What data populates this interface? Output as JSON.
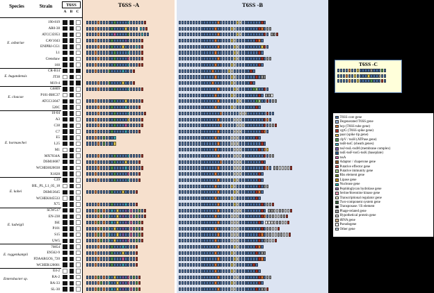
{
  "headers": {
    "species": "Species",
    "strain": "Strain",
    "t6ss": "T6SS",
    "col_a": "A",
    "col_b": "B",
    "col_c": "C"
  },
  "panels": {
    "a_title": "T6SS -A",
    "b_title": "T6SS -B"
  },
  "c_panel": {
    "title": "T6SS -C",
    "rows": [
      "BBBBOBBYBBBBNBBBGB",
      "BBBOBBYBBBBYBBBNBB",
      "BBBBOBBYBBBBGBBBRB"
    ]
  },
  "colors": {
    "panel_a_bg": "#f6e0cd",
    "panel_b_bg": "#dce4f2",
    "c_box_bg": "#ffffda",
    "c_box_border": "#4f74a8",
    "presence_fill": "#151515",
    "core_gene_blue": "#4f74a8"
  },
  "palette": {
    "B": "#4f74a8",
    "b": "#8fa9cf",
    "O": "#e07b39",
    "R": "#a93226",
    "r": "#d9534f",
    "G": "#4e9a51",
    "g": "#a3c585",
    "Y": "#e3c94e",
    "y": "#f2ecc8",
    "P": "#7b5aa6",
    "C": "#3fb0bd",
    "M": "#c95da0",
    "K": "#1a1a1a",
    "N": "#9a9a9a",
    "n": "#d2d2d2",
    "W": "#ffffff",
    "D": "#8a5a2b",
    "T": "#2e5984"
  },
  "table": {
    "groups": [
      {
        "name": "E. asburiae",
        "strains": [
          {
            "n": "190-819",
            "a": "BBBBOBBBBBGBBBBCBBBBBR",
            "b": "BBBBBBBBBBBBBBOBBBBBBYyBBBBBBBRB",
            "c": false
          },
          {
            "n": "AR0-38",
            "a": "BBBOBBBBBGBBBBYBBBB CBR",
            "b": "BBBBBBBBBBBBBOBBBBBYyBBBBBBBBROBNN",
            "c": false
          },
          {
            "n": "ATCC35953",
            "a": "BBBBOBBBBBMBBBBGBBBBCBB",
            "b": "BBBBBBBBBBBBBBOBBBBBBYyBBBBBBBBRB NNR",
            "c": false
          },
          {
            "n": "CAV1043",
            "a": "BBBOBBBBBGBBBBPBBBBBR",
            "b": "BBBBBBBBBBBBBOBBBBBYyBBBBBBBROB",
            "c": false
          },
          {
            "n": "ENIPBJ-CG1",
            "a": "BBBBOBBBBGBBBYBBBBCBR",
            "b": "BBBBBBBBBBBBBBOBBBBBYyBBBBBBBBYRB",
            "c": false
          },
          {
            "n": "L1",
            "a": "BBBOBBBBBBGBBBBCBBBBR",
            "b": "BBBBBBBBBBBBBOBBBBBBYyBBBBBBBRB",
            "c": false
          },
          {
            "n": "Crenshaw",
            "a": "BBBBOBBBBBGBBBBMBBBBR",
            "b": "BBBBBBBBBBBBBBOBBBBBYyBBBBBBBBRBNN",
            "c": false
          },
          {
            "n": "160",
            "a": "BBBOBBBBBBGBBBBCBBBRR",
            "b": "BBBBBBBBBBBBBOBBBBBYyBBBBBBBBRB",
            "c": false
          }
        ]
      },
      {
        "name": "E. bugandensis",
        "strains": [
          {
            "n": "CR-B14",
            "a": "BBBOBBBBGBBBBCBBBR",
            "b": "BBBBBBBBBBBBOBBBBBYyBBBBBBRB",
            "c": true
          },
          {
            "n": "JT38",
            "a": "",
            "b": "BBBBBBBBBBBBBOBBBBBYyBBBBBBBRBNN",
            "c": false
          },
          {
            "n": "M19-4",
            "a": "BBBBOBBBGBBBBYBBBR",
            "b": "BBBBBBBBBBBBOBBBBBBYyBBBBBRB",
            "c": true
          }
        ]
      },
      {
        "name": "E. cloacae",
        "strains": [
          {
            "n": "G6809",
            "a": "BBBBOBBBBBGBBBBCBBBBR",
            "b": "BBBBBBBBBBBBBBOBBBBBYyBBBBBGgBBRB",
            "c": false
          },
          {
            "n": "P101-BHC37",
            "a": "",
            "b": "BBBBBBBBBBBBBOBBBBBYyBBBBBBBBRB NNW",
            "c": false
          },
          {
            "n": "ATCC13047",
            "a": "BBBOBBBBBBGBBBYBBBBBR",
            "b": "BBBBBBBBBBBBBBOBBBBBBYyBBBBBGgBBRBNN",
            "c": false
          },
          {
            "n": "520C",
            "a": "BBBBOBBBBGBBBBCBBBBR",
            "b": "BBBBBBBBBBBBBOBBBBBYyBBBBBBBRB",
            "c": false
          }
        ]
      },
      {
        "name": "E. hormaechei",
        "strains": [
          {
            "n": "10-04",
            "a": "BBBBOBBBBBGBBBBCBBBBBR",
            "b": "BBBBBBBBBBBBBBBOBBBBBByyyBBBBBBBRBB",
            "c": false
          },
          {
            "n": "A3",
            "a": "BBBOBBBBBBGBBBBYBBBBR",
            "b": "BBBBBBBBBBBBBBOBBBBByyyBBBBBBBBROB",
            "c": false
          },
          {
            "n": "C38",
            "a": "BBBBOBBBBBGBBBMBBBBBR",
            "b": "BBBBBBBBBBBBBBBOBBBBByyyBBBBBBBRBNNR",
            "c": false
          },
          {
            "n": "C7",
            "a": "BBBOBBBBBGBBBBCBBBBR",
            "b": "BBBBBBBBBBBBBBOBBBBByyyBBBBBBBROB",
            "c": false
          },
          {
            "n": "E5",
            "a": "BBBOBBGBBBC",
            "b": "BBBBBBBBBBBBBOBBBBByyyBBBBBBRB",
            "c": false
          },
          {
            "n": "L25",
            "a": "BBBBOBGBBBY",
            "b": "BBBBBBBBBBBBBBOBBBByyyBBBBBBBBRB",
            "c": false
          },
          {
            "n": "M1",
            "a": "",
            "b": "BBBBBBBBBBBBBOBBBBBByyyBBBBBBRBOY",
            "c": false
          },
          {
            "n": "MX7034A",
            "a": "BBBBOBBBBBGBBBBCBBBBR",
            "b": "BBBBBBBBBBBBBBOBBBBByyyBBBBBBBBRBNN",
            "c": false
          },
          {
            "n": "DSM16687",
            "a": "BBBOBBBBBBGBBBYBBBBR",
            "b": "BBBBBBBBBBBBBBBOBBBByyyBBBBBBBRB",
            "c": false
          },
          {
            "n": "WCHEH020038",
            "a": "BBBBOBBBBGBBBBCBBBBBR",
            "b": "BBBBBBBBBBBBBBOBBBBByyyBBBBBBBBROB NNWWnnR",
            "c": false
          },
          {
            "n": "X1828",
            "a": "BBBOBBBBBBGBBBBMBBBR",
            "b": "BBBBBBBBBBBBBOBBBBBByyyBBBBBBRB",
            "c": false
          }
        ]
      },
      {
        "name": "E. kobei",
        "strains": [
          {
            "n": "C39",
            "a": "BBBBOBBBBBGBBBBCBBBR",
            "b": "BBBBBBBBBBBBBBOBBBBBYyBBBBBBBRB",
            "c": false
          },
          {
            "n": "BIL_PL_L1_05_18",
            "a": "",
            "b": "BBBBBBBBBBBBBOBBBBBYyBBBBBBBBRBNN",
            "c": false
          },
          {
            "n": "DSM13645",
            "a": "BBBOBBBBBGBBBYBBBBR",
            "b": "BBBBBBBBBBBBBBOBBBBBYyBBBBBBROB",
            "c": false
          },
          {
            "n": "WCHEK045533",
            "a": "",
            "b": "BBBBBBBBBBBBBOBBBBBYyBBBBBBBRB",
            "c": false
          },
          {
            "n": "X75",
            "a": "BBBBOBBBBGBBBBCBBBR",
            "b": "BBBBBBBBBBBBBBOBBBBBYyBBBBBBBBRBNNR",
            "c": false
          }
        ]
      },
      {
        "name": "E. ludwigii",
        "strains": [
          {
            "n": "SCW517",
            "a": "BBBOGBOBBCBYBBPBMBBGBR",
            "b": "BBBBBBBBBBBBBBOBBBBByyyBBBBBBBRB NNnnNNnnR",
            "c": false
          },
          {
            "n": "EN-238",
            "a": "BBBBOGBBCBBYBPBBMBGBBR",
            "b": "BBBBBBBBBBBBBOBBBBByyyBBBBBBBBROBNNnnNNR",
            "c": false
          },
          {
            "n": "ISE",
            "a": "BBBOGBOBBCBYBBPBMBBGR",
            "b": "BBBBBBBBBBBBBBOBBBByyyBBBBBBBRB WWnnNNnnR",
            "c": false
          },
          {
            "n": "P101",
            "a": "BBBBOGBBCBYBBPBBMBGBR",
            "b": "BBBBBBBBBBBBBOBBBBByyyBBBBBBBBRBNNnnR",
            "c": false
          },
          {
            "n": "S15",
            "a": "BBBOGBOBCBBYBPBBMBBGR",
            "b": "BBBBBBBBBBBBBBOBBBByyyBBBBBBBROBNNnnNNnnR",
            "c": false
          },
          {
            "n": "UW5",
            "a": "BBBBOGBBCBYBBPBMBBGBR",
            "b": "BBBBBBBBBBBBBOBBBBByyyBBBBBBBRBNNnnR",
            "c": false
          }
        ]
      },
      {
        "name": "E. roggenkampii",
        "strains": [
          {
            "n": "70854",
            "a": "BBBBOBBBBGBBBCBBBBR",
            "b": "BBBBBBBBBBBBBBOBBBBBYyBBBBBBROB",
            "c": false
          },
          {
            "n": "EN562-9",
            "a": "BBBOBBBBBGBBBYBBBBR",
            "b": "BBBBBBBBBBBBBOBBBBBYyBBBBBBBRBNN",
            "c": false
          },
          {
            "n": "FDAARGOS_720",
            "a": "BBBBOBBBBGBBBMBBBBR",
            "b": "BBBBBBBBBBBBBBOBBBBBYyBBBBBBBROB",
            "c": false
          },
          {
            "n": "WCHER120001",
            "a": "BBBOBBBBBGBBBCBBBBR",
            "b": "BBBBBBBBBBBBBOBBBBBYyBBBBBBRB",
            "c": false
          }
        ]
      },
      {
        "name": "Enterobacter sp.",
        "strains": [
          {
            "n": "E4-2",
            "a": "",
            "b": "BBBBBBBBBBBBBOBBBBBYyBBBBBBBRB",
            "c": false
          },
          {
            "n": "RA-2",
            "a": "BBBOGBOBCBYBBPBMBGBR",
            "b": "BBBBBBBBBBBBBBOBBBBByyBBBBBBBROBNN",
            "c": false
          },
          {
            "n": "RA-33",
            "a": "BBBBOGBBCBBYBPBMBBGR",
            "b": "BBBBBBBBBBBBBOBBBBBYyBBBBBBBBRB",
            "c": false
          },
          {
            "n": "SL-30",
            "a": "BBBOGBOBBCBYBPBBMBGR",
            "b": "BBBBBBBBBBBBBBOBBBByyBBBBBBBRBNNR",
            "c": false
          }
        ]
      }
    ]
  },
  "legend": {
    "items": [
      {
        "label": "T6SS core gene",
        "color": "#4f74a8"
      },
      {
        "label": "Degenerated T6SS gene",
        "color": "#8fa9cf"
      },
      {
        "label": "hcp (T6SS tube gene)",
        "color": "#e07b39"
      },
      {
        "label": "vgrG (T6SS spike gene)",
        "color": "#a93226"
      },
      {
        "label": "paar (spike tip gene)",
        "color": "#e3c94e"
      },
      {
        "label": "clpV / tssH (ATPase gene)",
        "color": "#4e9a51"
      },
      {
        "label": "tssB-tssC (sheath genes)",
        "color": "#3fb0bd"
      },
      {
        "label": "tssJ-tssL-tssM (membrane complex)",
        "color": "#7b5aa6"
      },
      {
        "label": "tssE-tssF-tssG-tssK (baseplate)",
        "color": "#2e5984"
      },
      {
        "label": "tssA",
        "color": "#c95da0"
      },
      {
        "label": "Adaptor / chaperone gene",
        "color": "#8a5a2b"
      },
      {
        "label": "Putative effector gene",
        "color": "#d9534f"
      },
      {
        "label": "Putative immunity gene",
        "color": "#a3c585"
      },
      {
        "label": "Rhs element gene",
        "color": "#6b8e23"
      },
      {
        "label": "Lipase gene",
        "color": "#b8860b"
      },
      {
        "label": "Nuclease gene",
        "color": "#20b2aa"
      },
      {
        "label": "Peptidoglycan hydrolase gene",
        "color": "#9370aa"
      },
      {
        "label": "Serine/threonine kinase gene",
        "color": "#e89bb4"
      },
      {
        "label": "Transcriptional regulator gene",
        "color": "#f2ecc8"
      },
      {
        "label": "Two-component system gene",
        "color": "#355e3b"
      },
      {
        "label": "Transposase / IS element",
        "color": "#1a1a1a"
      },
      {
        "label": "Phage-related gene",
        "color": "#9a9a9a"
      },
      {
        "label": "Hypothetical protein gene",
        "color": "#d2d2d2"
      },
      {
        "label": "tRNA gene",
        "color": "#d2b48c"
      },
      {
        "label": "Pseudogene",
        "color": "#ffffff"
      },
      {
        "label": "Other gene",
        "color": "#c0d6e8"
      }
    ]
  }
}
